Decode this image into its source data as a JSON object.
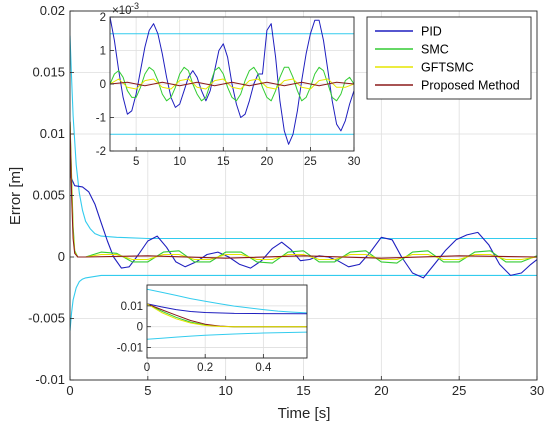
{
  "chart_data": [
    {
      "id": "main",
      "type": "line",
      "xlabel": "Time [s]",
      "ylabel": "Error [m]",
      "xlim": [
        0,
        30
      ],
      "ylim": [
        -0.01,
        0.02
      ],
      "xticks": [
        0,
        5,
        10,
        15,
        20,
        25,
        30
      ],
      "xtick_labels": [
        "0",
        "5",
        "10",
        "15",
        "20",
        "25",
        "30"
      ],
      "yticks": [
        -0.01,
        -0.005,
        0,
        0.005,
        0.01,
        0.015,
        0.02
      ],
      "ytick_labels": [
        "-0.01",
        "-0.005",
        "0",
        "0.005",
        "0.01",
        "0.015",
        "0.02"
      ],
      "grid": true,
      "legend_position": "top-right",
      "legend": [
        "PID",
        "SMC",
        "GFTSMC",
        "Proposed Method"
      ],
      "colors": {
        "PID": "#1f1fbf",
        "SMC": "#33cc33",
        "GFTSMC": "#e6e600",
        "Proposed Method": "#8b1a1a",
        "bounds": "#33ccee"
      },
      "series": [
        {
          "name": "PID",
          "x": [
            0,
            0.05,
            0.3,
            0.8,
            1.2,
            1.6,
            2.0,
            2.4,
            2.8,
            3.3,
            3.8,
            4.4,
            5.0,
            5.6,
            6.2,
            6.8,
            7.4,
            8.1,
            8.8,
            9.5,
            10.2,
            10.9,
            11.6,
            12.3,
            13.0,
            13.6,
            14.2,
            14.8,
            15.4,
            16.0,
            16.6,
            17.2,
            17.9,
            18.6,
            19.3,
            20.0,
            20.7,
            21.3,
            22.0,
            22.7,
            23.4,
            24.1,
            24.8,
            25.5,
            26.2,
            26.9,
            27.6,
            28.3,
            29.0,
            29.6,
            30.0
          ],
          "y": [
            0.011,
            0.0065,
            0.0058,
            0.0057,
            0.0053,
            0.0043,
            0.0028,
            0.0013,
            0.0,
            -0.0009,
            -0.0008,
            0.0002,
            0.0013,
            0.0017,
            0.0008,
            -0.0004,
            -0.0008,
            -0.0004,
            0.0002,
            0.0004,
            0.0,
            -0.0006,
            -0.0009,
            -0.0003,
            0.0007,
            0.0012,
            0.0006,
            -0.0003,
            -0.0002,
            0.0001,
            0.0,
            -0.0003,
            -0.0008,
            -0.0006,
            0.0004,
            0.0016,
            0.0014,
            0.0,
            -0.0013,
            -0.0017,
            -0.0006,
            0.0005,
            0.0014,
            0.0018,
            0.002,
            0.001,
            -0.0006,
            -0.0015,
            -0.0013,
            -0.0006,
            -0.0002
          ]
        },
        {
          "name": "SMC",
          "x": [
            0,
            0.1,
            0.2,
            0.3,
            0.5,
            1,
            2,
            3,
            4,
            5,
            6,
            7,
            8,
            9,
            10,
            11,
            12,
            13,
            14,
            15,
            16,
            17,
            18,
            19,
            20,
            21,
            22,
            23,
            24,
            25,
            26,
            27,
            28,
            29,
            30
          ],
          "y": [
            0.011,
            0.0065,
            0.0025,
            0.0005,
            0.0,
            0.0,
            0.0004,
            0.0003,
            -0.0004,
            -0.0004,
            0.0004,
            0.0005,
            -0.0004,
            -0.0004,
            0.0004,
            0.0004,
            -0.0004,
            -0.0005,
            0.0004,
            0.0005,
            -0.0004,
            -0.0004,
            0.0004,
            0.0005,
            -0.0004,
            -0.0005,
            0.0004,
            0.0005,
            -0.0004,
            -0.0004,
            0.0004,
            0.0005,
            -0.0004,
            -0.0004,
            0.0001
          ]
        },
        {
          "name": "GFTSMC",
          "x": [
            0,
            0.1,
            0.2,
            0.3,
            0.5,
            1,
            2,
            3,
            4,
            5,
            6,
            7,
            8,
            9,
            10,
            11,
            12,
            13,
            14,
            15,
            16,
            17,
            18,
            19,
            20,
            21,
            22,
            23,
            24,
            25,
            26,
            27,
            28,
            29,
            30
          ],
          "y": [
            0.011,
            0.006,
            0.002,
            0.0004,
            0.0,
            0.0,
            0.0002,
            0.0002,
            -0.0002,
            -0.0002,
            0.0002,
            0.0002,
            -0.0002,
            -0.0002,
            0.0002,
            0.0002,
            -0.0002,
            -0.0002,
            0.0002,
            0.0002,
            -0.0002,
            -0.0002,
            0.0002,
            0.0002,
            -0.0002,
            -0.0002,
            0.0002,
            0.0002,
            -0.0002,
            -0.0002,
            0.0002,
            0.0002,
            -0.0002,
            -0.0002,
            0.0
          ]
        },
        {
          "name": "Proposed Method",
          "x": [
            0,
            0.1,
            0.2,
            0.3,
            0.5,
            1,
            5,
            10,
            15,
            20,
            25,
            30
          ],
          "y": [
            0.011,
            0.005,
            0.0015,
            0.0003,
            0.0,
            0.0,
            0.0001,
            -0.0001,
            0.0001,
            -0.0001,
            0.0001,
            0.0
          ]
        },
        {
          "name": "upper bound",
          "x": [
            0,
            0.1,
            0.2,
            0.4,
            0.6,
            0.8,
            1.0,
            1.3,
            1.6,
            2,
            3,
            5,
            10,
            20,
            30
          ],
          "y": [
            0.018,
            0.0145,
            0.0115,
            0.0075,
            0.0052,
            0.0038,
            0.0029,
            0.0023,
            0.0019,
            0.0017,
            0.0016,
            0.0015,
            0.0015,
            0.0015,
            0.0015
          ]
        },
        {
          "name": "lower bound",
          "x": [
            0,
            0.1,
            0.2,
            0.4,
            0.6,
            0.8,
            1.0,
            1.5,
            2,
            3,
            5,
            10,
            20,
            30
          ],
          "y": [
            -0.006,
            -0.0045,
            -0.0035,
            -0.0025,
            -0.002,
            -0.0018,
            -0.0017,
            -0.0016,
            -0.0015,
            -0.0015,
            -0.0015,
            -0.0015,
            -0.0015,
            -0.0015
          ]
        }
      ]
    },
    {
      "id": "inset-top",
      "type": "line",
      "xlim": [
        2,
        30
      ],
      "ylim": [
        -2,
        2
      ],
      "exponent_label": "×10",
      "exponent_power": "-3",
      "xticks": [
        5,
        10,
        15,
        20,
        25,
        30
      ],
      "xtick_labels": [
        "5",
        "10",
        "15",
        "20",
        "25",
        "30"
      ],
      "yticks": [
        -2,
        -1,
        0,
        1,
        2
      ],
      "ytick_labels": [
        "-2",
        "-1",
        "0",
        "1",
        "2"
      ],
      "grid": true,
      "series": [
        {
          "name": "PID",
          "x": [
            2,
            2.5,
            3,
            3.5,
            4,
            4.5,
            5,
            5.5,
            6,
            6.5,
            7,
            7.5,
            8,
            8.5,
            9,
            9.5,
            10,
            10.5,
            11,
            11.5,
            12,
            12.5,
            13,
            13.5,
            14,
            14.5,
            15,
            15.5,
            16,
            16.5,
            17,
            17.5,
            18,
            18.5,
            19,
            19.5,
            20,
            20.5,
            21,
            21.5,
            22,
            22.5,
            23,
            23.5,
            24,
            24.5,
            25,
            25.5,
            26,
            26.5,
            27,
            27.5,
            28,
            28.5,
            29,
            29.5,
            30
          ],
          "y": [
            2.0,
            1.3,
            0.4,
            -0.4,
            -0.9,
            -0.8,
            -0.3,
            0.4,
            1.1,
            1.6,
            1.8,
            1.5,
            0.9,
            0.2,
            -0.4,
            -0.7,
            -0.6,
            -0.2,
            0.2,
            0.4,
            0.2,
            -0.2,
            -0.5,
            -0.2,
            0.4,
            1.0,
            1.2,
            0.8,
            0.0,
            -0.6,
            -1.0,
            -0.9,
            -0.5,
            0.0,
            0.3,
            0.3,
            1.6,
            1.8,
            0.8,
            -0.5,
            -1.4,
            -1.8,
            -1.5,
            -0.8,
            0.1,
            0.9,
            1.5,
            1.9,
            1.9,
            1.3,
            0.4,
            -0.5,
            -1.2,
            -1.4,
            -1.1,
            -0.6,
            -0.2
          ]
        },
        {
          "name": "SMC",
          "x": [
            2,
            2.5,
            3,
            3.5,
            4,
            4.5,
            5,
            5.5,
            6,
            6.5,
            7,
            7.5,
            8,
            8.5,
            9,
            9.5,
            10,
            10.5,
            11,
            11.5,
            12,
            12.5,
            13,
            13.5,
            14,
            14.5,
            15,
            15.5,
            16,
            16.5,
            17,
            17.5,
            18,
            18.5,
            19,
            19.5,
            20,
            20.5,
            21,
            21.5,
            22,
            22.5,
            23,
            23.5,
            24,
            24.5,
            25,
            25.5,
            26,
            26.5,
            27,
            27.5,
            28,
            28.5,
            29,
            29.5,
            30
          ],
          "y": [
            0.0,
            0.3,
            0.4,
            0.2,
            -0.2,
            -0.4,
            -0.4,
            -0.1,
            0.3,
            0.5,
            0.4,
            0.1,
            -0.3,
            -0.5,
            -0.4,
            -0.1,
            0.3,
            0.5,
            0.4,
            0.0,
            -0.3,
            -0.5,
            -0.4,
            0.0,
            0.4,
            0.5,
            0.3,
            -0.1,
            -0.4,
            -0.5,
            -0.3,
            0.1,
            0.4,
            0.5,
            0.3,
            -0.1,
            -0.4,
            -0.5,
            -0.2,
            0.2,
            0.5,
            0.5,
            0.2,
            -0.2,
            -0.5,
            -0.4,
            -0.1,
            0.3,
            0.5,
            0.4,
            0.0,
            -0.4,
            -0.5,
            -0.3,
            0.1,
            0.2,
            0.0
          ]
        },
        {
          "name": "GFTSMC",
          "x": [
            2,
            3,
            4,
            5,
            6,
            7,
            8,
            9,
            10,
            11,
            12,
            13,
            14,
            15,
            16,
            17,
            18,
            19,
            20,
            21,
            22,
            23,
            24,
            25,
            26,
            27,
            28,
            29,
            30
          ],
          "y": [
            0.0,
            0.15,
            -0.1,
            -0.15,
            0.1,
            0.15,
            -0.1,
            -0.15,
            0.1,
            0.15,
            -0.1,
            -0.15,
            0.1,
            0.15,
            -0.1,
            -0.15,
            0.1,
            0.15,
            -0.1,
            -0.15,
            0.1,
            0.15,
            -0.1,
            -0.15,
            0.1,
            0.15,
            -0.1,
            -0.1,
            0.0
          ]
        },
        {
          "name": "Proposed Method",
          "x": [
            2,
            4,
            6,
            8,
            10,
            12,
            14,
            16,
            18,
            20,
            22,
            24,
            26,
            28,
            30
          ],
          "y": [
            0.0,
            0.05,
            -0.05,
            0.05,
            -0.05,
            0.05,
            -0.05,
            0.05,
            -0.05,
            0.05,
            -0.05,
            0.05,
            -0.05,
            0.05,
            0.0
          ]
        },
        {
          "name": "upper bound",
          "x": [
            2,
            30
          ],
          "y": [
            1.5,
            1.5
          ]
        },
        {
          "name": "lower bound",
          "x": [
            2,
            30
          ],
          "y": [
            -1.5,
            -1.5
          ]
        }
      ]
    },
    {
      "id": "inset-bottom",
      "type": "line",
      "xlim": [
        0,
        0.55
      ],
      "ylim": [
        -0.015,
        0.02
      ],
      "xticks": [
        0,
        0.2,
        0.4
      ],
      "xtick_labels": [
        "0",
        "0.2",
        "0.4"
      ],
      "yticks": [
        -0.01,
        0,
        0.01
      ],
      "ytick_labels": [
        "-0.01",
        "0",
        "0.01"
      ],
      "grid": true,
      "series": [
        {
          "name": "upper bound",
          "x": [
            0,
            0.05,
            0.1,
            0.15,
            0.2,
            0.25,
            0.3,
            0.35,
            0.4,
            0.45,
            0.5,
            0.55
          ],
          "y": [
            0.018,
            0.0165,
            0.015,
            0.0135,
            0.0122,
            0.011,
            0.0099,
            0.009,
            0.0082,
            0.0075,
            0.007,
            0.0066
          ]
        },
        {
          "name": "PID",
          "x": [
            0,
            0.05,
            0.1,
            0.15,
            0.2,
            0.3,
            0.4,
            0.55
          ],
          "y": [
            0.011,
            0.0095,
            0.0082,
            0.0073,
            0.0068,
            0.0064,
            0.0063,
            0.0062
          ]
        },
        {
          "name": "SMC",
          "x": [
            0,
            0.05,
            0.1,
            0.15,
            0.2,
            0.25,
            0.3,
            0.4,
            0.55
          ],
          "y": [
            0.011,
            0.0075,
            0.0045,
            0.0022,
            0.0008,
            0.0002,
            0.0,
            0.0,
            0.0
          ]
        },
        {
          "name": "GFTSMC",
          "x": [
            0,
            0.05,
            0.1,
            0.15,
            0.2,
            0.25,
            0.3,
            0.4,
            0.55
          ],
          "y": [
            0.011,
            0.0068,
            0.0038,
            0.0018,
            0.0006,
            0.0001,
            0.0,
            0.0,
            0.0
          ]
        },
        {
          "name": "Proposed Method",
          "x": [
            0,
            0.05,
            0.1,
            0.15,
            0.2,
            0.25,
            0.3,
            0.4,
            0.55
          ],
          "y": [
            0.011,
            0.0082,
            0.0055,
            0.003,
            0.0012,
            0.0003,
            0.0,
            0.0,
            0.0
          ]
        },
        {
          "name": "lower bound",
          "x": [
            0,
            0.05,
            0.1,
            0.15,
            0.2,
            0.3,
            0.4,
            0.55
          ],
          "y": [
            -0.006,
            -0.0055,
            -0.005,
            -0.0045,
            -0.0041,
            -0.0035,
            -0.003,
            -0.0026
          ]
        }
      ]
    }
  ]
}
